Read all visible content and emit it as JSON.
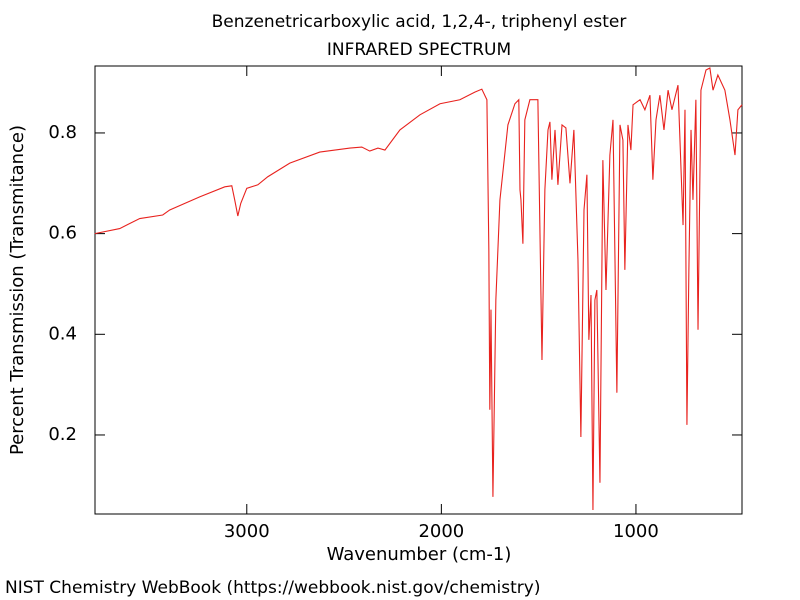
{
  "chart_data": {
    "type": "line",
    "title": "Benzenetricarboxylic acid, 1,2,4-, triphenyl ester",
    "subtitle": "INFRARED SPECTRUM",
    "x_label": "Wavenumber (cm-1)",
    "y_label": "Percent Transmission (Transmitance)",
    "xlim": [
      3780,
      455
    ],
    "ylim": [
      0.043,
      0.933
    ],
    "xticks": [
      3000,
      2000,
      1000
    ],
    "yticks": [
      0.2,
      0.4,
      0.6,
      0.8
    ],
    "grid": false,
    "series": [
      {
        "name": "spectrum",
        "color": "#e8221e",
        "x": [
          3781,
          3653,
          3550,
          3432,
          3396,
          3242,
          3113,
          3077,
          3062,
          3046,
          3031,
          3000,
          2943,
          2892,
          2779,
          2625,
          2470,
          2409,
          2368,
          2326,
          2290,
          2213,
          2110,
          2007,
          1905,
          1828,
          1792,
          1766,
          1756,
          1751,
          1745,
          1735,
          1720,
          1699,
          1658,
          1622,
          1602,
          1596,
          1591,
          1581,
          1571,
          1545,
          1504,
          1483,
          1468,
          1452,
          1442,
          1432,
          1416,
          1401,
          1380,
          1360,
          1339,
          1319,
          1298,
          1283,
          1267,
          1252,
          1242,
          1231,
          1221,
          1211,
          1201,
          1185,
          1170,
          1154,
          1134,
          1118,
          1098,
          1082,
          1067,
          1057,
          1041,
          1026,
          1015,
          979,
          954,
          928,
          913,
          897,
          877,
          856,
          835,
          815,
          784,
          758,
          748,
          738,
          728,
          717,
          707,
          692,
          681,
          666,
          640,
          620,
          604,
          579,
          543,
          517,
          491,
          476,
          455
        ],
        "values": [
          0.6,
          0.61,
          0.63,
          0.637,
          0.647,
          0.673,
          0.693,
          0.695,
          0.667,
          0.635,
          0.66,
          0.69,
          0.697,
          0.713,
          0.74,
          0.762,
          0.77,
          0.772,
          0.764,
          0.77,
          0.766,
          0.806,
          0.836,
          0.858,
          0.866,
          0.881,
          0.887,
          0.866,
          0.568,
          0.25,
          0.449,
          0.077,
          0.468,
          0.667,
          0.816,
          0.858,
          0.866,
          0.687,
          0.667,
          0.58,
          0.826,
          0.866,
          0.866,
          0.349,
          0.687,
          0.806,
          0.822,
          0.707,
          0.806,
          0.697,
          0.816,
          0.81,
          0.7,
          0.806,
          0.548,
          0.196,
          0.647,
          0.717,
          0.389,
          0.478,
          0.051,
          0.468,
          0.488,
          0.105,
          0.746,
          0.488,
          0.756,
          0.826,
          0.284,
          0.816,
          0.786,
          0.528,
          0.816,
          0.766,
          0.856,
          0.866,
          0.846,
          0.875,
          0.707,
          0.826,
          0.875,
          0.806,
          0.885,
          0.846,
          0.895,
          0.617,
          0.846,
          0.22,
          0.528,
          0.806,
          0.667,
          0.866,
          0.409,
          0.885,
          0.925,
          0.929,
          0.885,
          0.915,
          0.885,
          0.826,
          0.756,
          0.846,
          0.856
        ]
      }
    ]
  },
  "footer": "NIST Chemistry WebBook (https://webbook.nist.gov/chemistry)"
}
